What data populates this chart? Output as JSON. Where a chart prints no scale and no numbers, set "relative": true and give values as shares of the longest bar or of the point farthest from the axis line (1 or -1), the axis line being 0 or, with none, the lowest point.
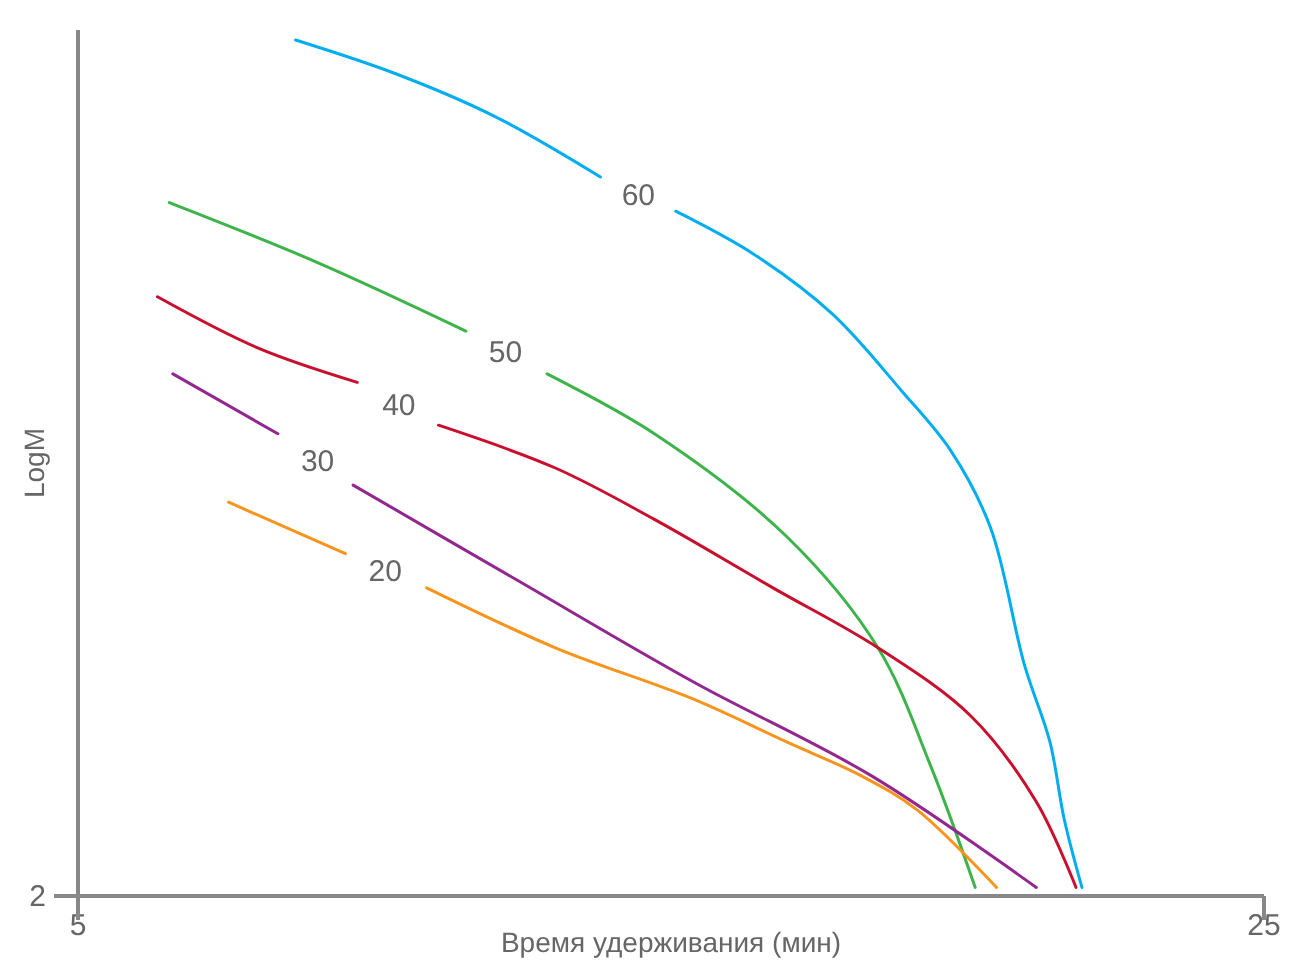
{
  "chart_data": {
    "type": "line",
    "xlabel": "Время удерживания (мин)",
    "ylabel": "LogM",
    "relative": true,
    "xlim": [
      5,
      25
    ],
    "xticks": [
      5,
      25
    ],
    "annotations": [
      "2"
    ],
    "series": [
      {
        "name": "60",
        "color": "#00aeef",
        "x": [
          8.67,
          10.38,
          12.05,
          13.81,
          14.45,
          15.08,
          16.39,
          17.72,
          18.89,
          19.72,
          20.39,
          20.96,
          21.39,
          21.63,
          21.93
        ],
        "values": [
          1.0,
          0.96,
          0.91,
          0.84,
          null,
          0.8,
          0.75,
          0.68,
          0.59,
          0.52,
          0.43,
          0.27,
          0.18,
          0.09,
          0.01
        ]
      },
      {
        "name": "50",
        "color": "#3cb44a",
        "x": [
          6.54,
          9.04,
          11.54,
          12.21,
          12.91,
          14.72,
          16.95,
          18.49,
          19.39,
          20.13
        ],
        "values": [
          0.81,
          0.74,
          0.66,
          null,
          0.61,
          0.54,
          0.42,
          0.29,
          0.15,
          0.01
        ]
      },
      {
        "name": "40",
        "color": "#c8102e",
        "x": [
          6.34,
          8.04,
          9.71,
          10.41,
          11.08,
          13.05,
          14.72,
          16.72,
          18.49,
          20.06,
          21.16,
          21.83
        ],
        "values": [
          0.7,
          0.64,
          0.6,
          null,
          0.55,
          0.5,
          0.44,
          0.36,
          0.29,
          0.21,
          0.11,
          0.01
        ]
      },
      {
        "name": "30",
        "color": "#92278f",
        "x": [
          6.6,
          8.37,
          9.04,
          9.64,
          12.38,
          15.38,
          18.39,
          21.16
        ],
        "values": [
          0.61,
          0.54,
          null,
          0.48,
          0.37,
          0.25,
          0.14,
          0.01
        ]
      },
      {
        "name": "20",
        "color": "#f7941d",
        "x": [
          7.54,
          9.51,
          10.18,
          10.88,
          13.05,
          15.38,
          16.95,
          18.22,
          19.16,
          20.49
        ],
        "values": [
          0.46,
          0.4,
          null,
          0.36,
          0.29,
          0.23,
          0.18,
          0.14,
          0.1,
          0.01
        ]
      }
    ]
  }
}
